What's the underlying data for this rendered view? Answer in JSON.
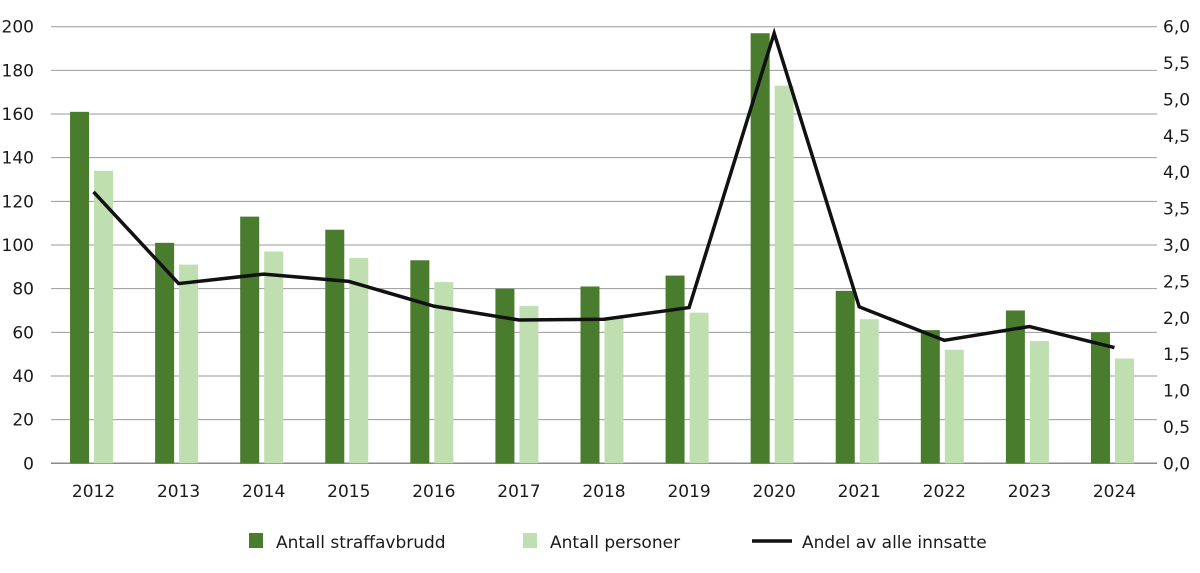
{
  "chart_data": {
    "type": "bar",
    "categories": [
      "2012",
      "2013",
      "2014",
      "2015",
      "2016",
      "2017",
      "2018",
      "2019",
      "2020",
      "2021",
      "2022",
      "2023",
      "2024"
    ],
    "series": [
      {
        "name": "Antall straffavbrudd",
        "type": "bar",
        "axis": "left",
        "color": "#4a7c2e",
        "values": [
          161,
          101,
          113,
          107,
          93,
          80,
          81,
          86,
          197,
          79,
          61,
          70,
          60
        ]
      },
      {
        "name": "Antall personer",
        "type": "bar",
        "axis": "left",
        "color": "#bfdfb0",
        "values": [
          134,
          91,
          97,
          94,
          83,
          72,
          67,
          69,
          173,
          66,
          52,
          56,
          48
        ]
      },
      {
        "name": "Andel av alle innsatte",
        "type": "line",
        "axis": "right",
        "color": "#111111",
        "values": [
          3.73,
          2.47,
          2.6,
          2.5,
          2.16,
          1.97,
          1.98,
          2.14,
          5.91,
          2.15,
          1.69,
          1.88,
          1.59
        ]
      }
    ],
    "left_axis": {
      "range": [
        0,
        200
      ],
      "ticks": [
        "0",
        "20",
        "40",
        "60",
        "80",
        "100",
        "120",
        "140",
        "160",
        "180",
        "200"
      ]
    },
    "right_axis": {
      "range": [
        0,
        6
      ],
      "ticks": [
        "0,0",
        "0,5",
        "1,0",
        "1,5",
        "2,0",
        "2,5",
        "3,0",
        "3,5",
        "4,0",
        "4,5",
        "5,0",
        "5,5",
        "6,0"
      ]
    },
    "grid": true,
    "legend_position": "bottom",
    "title": "",
    "xlabel": "",
    "ylabel": ""
  }
}
